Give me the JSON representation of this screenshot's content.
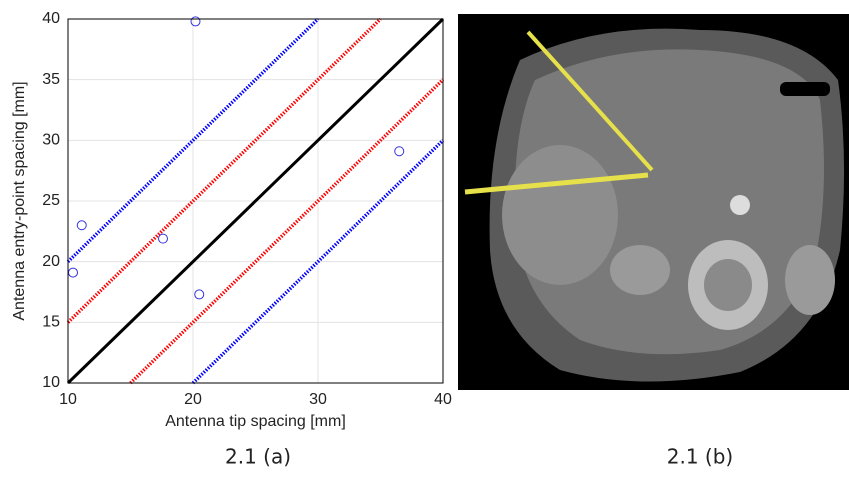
{
  "chart_data": {
    "type": "scatter",
    "xlabel": "Antenna tip spacing [mm]",
    "ylabel": "Antenna entry-point spacing [mm]",
    "xlim": [
      10,
      40
    ],
    "ylim": [
      10,
      40
    ],
    "xticks": [
      10,
      20,
      30,
      40
    ],
    "yticks": [
      10,
      15,
      20,
      25,
      30,
      35,
      40
    ],
    "grid": true,
    "series": [
      {
        "type": "line",
        "color": "#000000",
        "style": "solid",
        "x": [
          10,
          40
        ],
        "values": [
          10,
          40
        ]
      },
      {
        "type": "line",
        "color": "#ff0000",
        "style": "dotted",
        "x": [
          10,
          35
        ],
        "values": [
          15,
          40
        ]
      },
      {
        "type": "line",
        "color": "#ff0000",
        "style": "dotted",
        "x": [
          15,
          40
        ],
        "values": [
          10,
          35
        ]
      },
      {
        "type": "line",
        "color": "#0000ff",
        "style": "dotted",
        "x": [
          10,
          30
        ],
        "values": [
          20,
          40
        ]
      },
      {
        "type": "line",
        "color": "#0000ff",
        "style": "dotted",
        "x": [
          20,
          40
        ],
        "values": [
          10,
          30
        ]
      },
      {
        "type": "scatter",
        "color": "#3333dd",
        "x": [
          20.2,
          11.1,
          10.4,
          17.6,
          20.5,
          36.5
        ],
        "values": [
          39.8,
          23.0,
          19.1,
          21.9,
          17.3,
          29.1
        ]
      }
    ]
  },
  "captions": [
    "2.1 (a)",
    "2.1 (b)"
  ]
}
